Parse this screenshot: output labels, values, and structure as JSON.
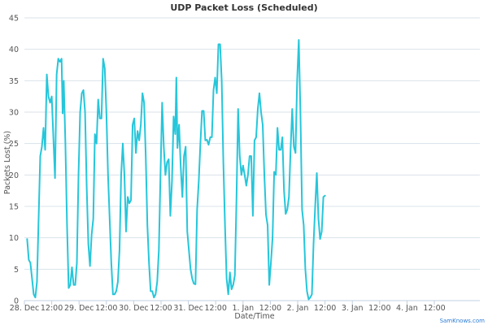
{
  "colors": {
    "series": "#26c6da",
    "grid": "#d9e3ea",
    "credit": "#2a7bd6"
  },
  "credit": "SamKnows.com",
  "chart_data": {
    "type": "line",
    "title": "UDP Packet Loss (Scheduled)",
    "xlabel": "Date/Time",
    "ylabel": "Packets Lost (%)",
    "ylim": [
      0,
      45
    ],
    "yticks": [
      "0",
      "5",
      "10",
      "15",
      "20",
      "25",
      "30",
      "35",
      "40",
      "45"
    ],
    "xlim": [
      0,
      8.333
    ],
    "xticks": [
      {
        "v": 0,
        "label": "28. Dec"
      },
      {
        "v": 0.5,
        "label": "12:00"
      },
      {
        "v": 1,
        "label": "29. Dec"
      },
      {
        "v": 1.5,
        "label": "12:00"
      },
      {
        "v": 2,
        "label": "30. Dec"
      },
      {
        "v": 2.5,
        "label": "12:00"
      },
      {
        "v": 3,
        "label": "31. Dec"
      },
      {
        "v": 3.5,
        "label": "12:00"
      },
      {
        "v": 4,
        "label": "1. Jan"
      },
      {
        "v": 4.5,
        "label": "12:00"
      },
      {
        "v": 5,
        "label": "2. Jan"
      },
      {
        "v": 5.5,
        "label": "12:00"
      },
      {
        "v": 6,
        "label": "3. Jan"
      },
      {
        "v": 6.5,
        "label": "12:00"
      },
      {
        "v": 7,
        "label": "4. Jan"
      },
      {
        "v": 7.5,
        "label": "12:00"
      }
    ],
    "grid": true,
    "legend": "none",
    "series": [
      {
        "points": [
          [
            0.05,
            9.8
          ],
          [
            0.08,
            6.5
          ],
          [
            0.11,
            6
          ],
          [
            0.14,
            3.5
          ],
          [
            0.17,
            1
          ],
          [
            0.2,
            0.5
          ],
          [
            0.23,
            3
          ],
          [
            0.26,
            13
          ],
          [
            0.29,
            23
          ],
          [
            0.32,
            24.5
          ],
          [
            0.35,
            27.5
          ],
          [
            0.38,
            24
          ],
          [
            0.41,
            36
          ],
          [
            0.44,
            32.5
          ],
          [
            0.47,
            31.5
          ],
          [
            0.5,
            32.5
          ],
          [
            0.53,
            26
          ],
          [
            0.56,
            19.5
          ],
          [
            0.59,
            36
          ],
          [
            0.62,
            38.5
          ],
          [
            0.65,
            38
          ],
          [
            0.68,
            38.5
          ],
          [
            0.7,
            29.8
          ],
          [
            0.72,
            35
          ],
          [
            0.75,
            25
          ],
          [
            0.78,
            12
          ],
          [
            0.81,
            2
          ],
          [
            0.84,
            2.5
          ],
          [
            0.87,
            5.3
          ],
          [
            0.9,
            2.5
          ],
          [
            0.93,
            2.5
          ],
          [
            0.96,
            6
          ],
          [
            0.99,
            20
          ],
          [
            1.02,
            30
          ],
          [
            1.05,
            33
          ],
          [
            1.08,
            33.5
          ],
          [
            1.11,
            30
          ],
          [
            1.14,
            18
          ],
          [
            1.17,
            9
          ],
          [
            1.2,
            5.5
          ],
          [
            1.23,
            10.5
          ],
          [
            1.26,
            13
          ],
          [
            1.29,
            26.5
          ],
          [
            1.32,
            25
          ],
          [
            1.35,
            32
          ],
          [
            1.38,
            29
          ],
          [
            1.41,
            29
          ],
          [
            1.44,
            38.5
          ],
          [
            1.47,
            37
          ],
          [
            1.5,
            30
          ],
          [
            1.53,
            20
          ],
          [
            1.56,
            13
          ],
          [
            1.59,
            6
          ],
          [
            1.62,
            1
          ],
          [
            1.65,
            1
          ],
          [
            1.68,
            1.5
          ],
          [
            1.71,
            3
          ],
          [
            1.74,
            8
          ],
          [
            1.77,
            20
          ],
          [
            1.8,
            25
          ],
          [
            1.83,
            20
          ],
          [
            1.86,
            11
          ],
          [
            1.89,
            16.5
          ],
          [
            1.92,
            15.5
          ],
          [
            1.95,
            16
          ],
          [
            1.98,
            28
          ],
          [
            2.01,
            29
          ],
          [
            2.04,
            23.5
          ],
          [
            2.07,
            27
          ],
          [
            2.1,
            25.5
          ],
          [
            2.13,
            28
          ],
          [
            2.16,
            33
          ],
          [
            2.19,
            31.5
          ],
          [
            2.22,
            23
          ],
          [
            2.25,
            12
          ],
          [
            2.28,
            6
          ],
          [
            2.31,
            1.5
          ],
          [
            2.34,
            1.5
          ],
          [
            2.37,
            0.5
          ],
          [
            2.4,
            1
          ],
          [
            2.43,
            3
          ],
          [
            2.46,
            8
          ],
          [
            2.49,
            20
          ],
          [
            2.52,
            31.5
          ],
          [
            2.55,
            24.5
          ],
          [
            2.58,
            20
          ],
          [
            2.61,
            22
          ],
          [
            2.64,
            22.5
          ],
          [
            2.67,
            13.5
          ],
          [
            2.7,
            19
          ],
          [
            2.73,
            29.3
          ],
          [
            2.76,
            26.5
          ],
          [
            2.78,
            35.5
          ],
          [
            2.8,
            24.3
          ],
          [
            2.83,
            28
          ],
          [
            2.86,
            21.3
          ],
          [
            2.89,
            16.5
          ],
          [
            2.92,
            23
          ],
          [
            2.95,
            24.5
          ],
          [
            2.98,
            11
          ],
          [
            3.01,
            8
          ],
          [
            3.04,
            5
          ],
          [
            3.07,
            3.5
          ],
          [
            3.1,
            2.7
          ],
          [
            3.13,
            2.6
          ],
          [
            3.16,
            14.5
          ],
          [
            3.19,
            19
          ],
          [
            3.22,
            25
          ],
          [
            3.25,
            30.2
          ],
          [
            3.28,
            30.2
          ],
          [
            3.31,
            25.5
          ],
          [
            3.34,
            25.6
          ],
          [
            3.37,
            24.8
          ],
          [
            3.4,
            26
          ],
          [
            3.43,
            26
          ],
          [
            3.46,
            33.5
          ],
          [
            3.49,
            35.5
          ],
          [
            3.52,
            33
          ],
          [
            3.55,
            40.8
          ],
          [
            3.58,
            40.8
          ],
          [
            3.61,
            35
          ],
          [
            3.64,
            22
          ],
          [
            3.67,
            12
          ],
          [
            3.7,
            3.5
          ],
          [
            3.73,
            1
          ],
          [
            3.76,
            4.5
          ],
          [
            3.79,
            1.8
          ],
          [
            3.82,
            2.5
          ],
          [
            3.85,
            4
          ],
          [
            3.88,
            16
          ],
          [
            3.91,
            30.5
          ],
          [
            3.94,
            23
          ],
          [
            3.97,
            20
          ],
          [
            4.0,
            21.5
          ],
          [
            4.03,
            20
          ],
          [
            4.06,
            18.3
          ],
          [
            4.09,
            20
          ],
          [
            4.12,
            23
          ],
          [
            4.15,
            23
          ],
          [
            4.18,
            13.5
          ],
          [
            4.21,
            25.5
          ],
          [
            4.24,
            26
          ],
          [
            4.27,
            30.5
          ],
          [
            4.3,
            33
          ],
          [
            4.33,
            30
          ],
          [
            4.36,
            28
          ],
          [
            4.39,
            20
          ],
          [
            4.42,
            13.7
          ],
          [
            4.45,
            12
          ],
          [
            4.48,
            2.5
          ],
          [
            4.51,
            6
          ],
          [
            4.54,
            10
          ],
          [
            4.57,
            20.5
          ],
          [
            4.6,
            20
          ],
          [
            4.63,
            27.5
          ],
          [
            4.66,
            24
          ],
          [
            4.69,
            24
          ],
          [
            4.72,
            26
          ],
          [
            4.75,
            17.5
          ],
          [
            4.78,
            13.8
          ],
          [
            4.81,
            14.5
          ],
          [
            4.84,
            16.5
          ],
          [
            4.87,
            24
          ],
          [
            4.9,
            30.5
          ],
          [
            4.93,
            24.5
          ],
          [
            4.96,
            23.5
          ],
          [
            4.99,
            35
          ],
          [
            5.02,
            41.5
          ],
          [
            5.05,
            30
          ],
          [
            5.08,
            14.5
          ],
          [
            5.11,
            12
          ],
          [
            5.14,
            5
          ],
          [
            5.17,
            1.5
          ],
          [
            5.2,
            0.2
          ],
          [
            5.23,
            0.5
          ],
          [
            5.26,
            1
          ],
          [
            5.29,
            9
          ],
          [
            5.32,
            15
          ],
          [
            5.35,
            20.3
          ],
          [
            5.38,
            13
          ],
          [
            5.41,
            9.8
          ],
          [
            5.44,
            11
          ],
          [
            5.47,
            16.5
          ],
          [
            5.5,
            16.7
          ]
        ]
      }
    ]
  }
}
